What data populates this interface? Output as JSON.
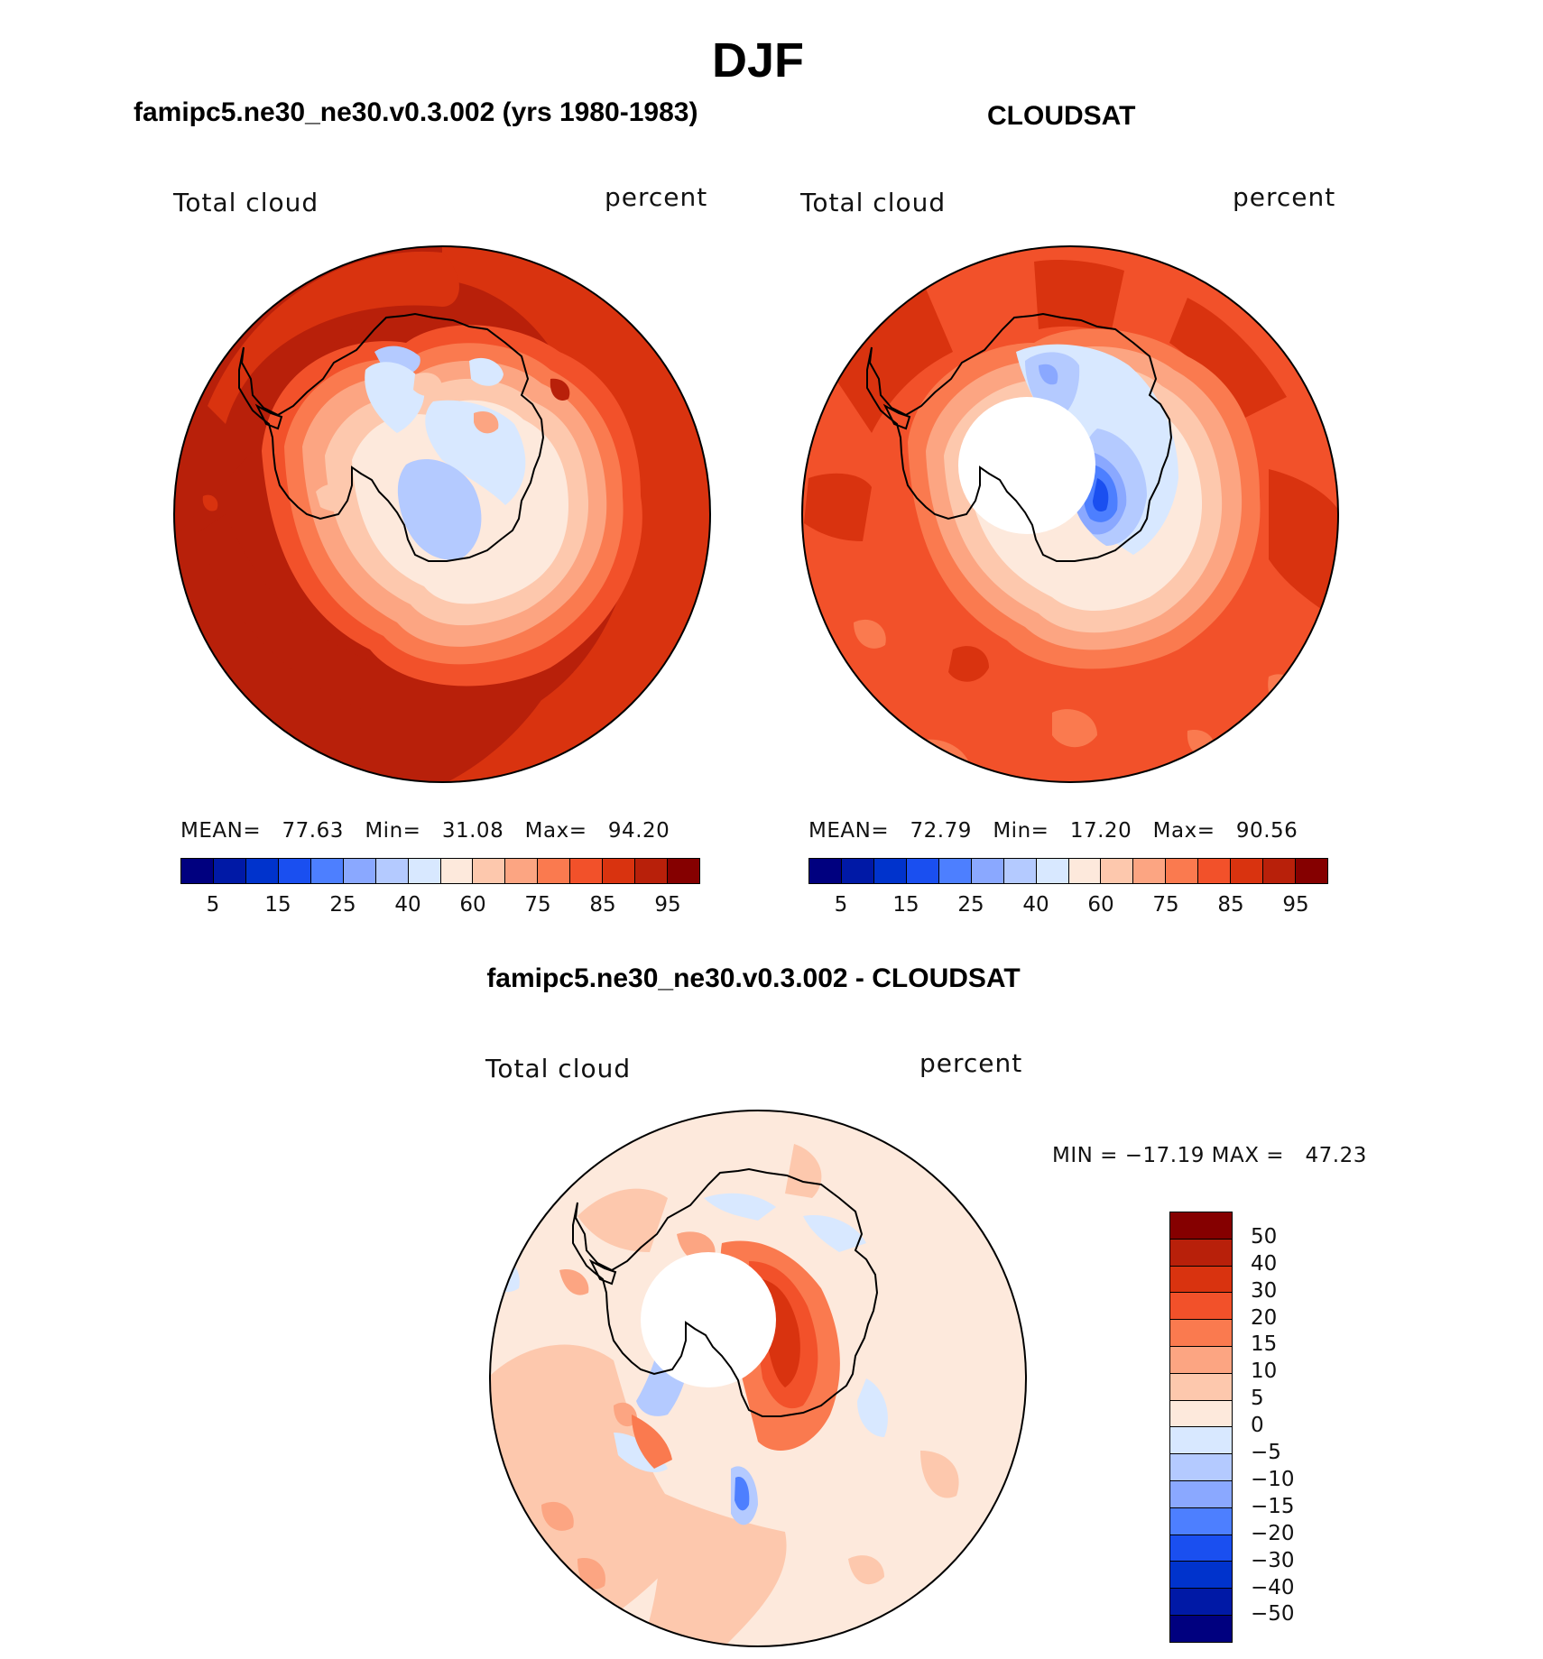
{
  "title": "DJF",
  "panels": {
    "model": {
      "title": "famipc5.ne30_ne30.v0.3.002 (yrs 1980-1983)",
      "variable": "Total cloud",
      "units": "percent",
      "stats": {
        "mean_label": "MEAN=",
        "mean": "77.63",
        "min_label": "Min=",
        "min": "31.08",
        "max_label": "Max=",
        "max": "94.20"
      }
    },
    "obs": {
      "title": "CLOUDSAT",
      "variable": "Total cloud",
      "units": "percent",
      "stats": {
        "mean_label": "MEAN=",
        "mean": "72.79",
        "min_label": "Min=",
        "min": "17.20",
        "max_label": "Max=",
        "max": "90.56"
      }
    },
    "diff": {
      "title": "famipc5.ne30_ne30.v0.3.002 - CLOUDSAT",
      "variable": "Total cloud",
      "units": "percent",
      "minmax": "MIN = −17.19 MAX =   47.23"
    }
  },
  "colorbars": {
    "abs": {
      "colors": [
        "#00007f",
        "#0019a6",
        "#0033cc",
        "#1a4ff0",
        "#4d7fff",
        "#8aa8ff",
        "#b4caff",
        "#d8e8ff",
        "#fde9dc",
        "#fdc8ad",
        "#fca582",
        "#fa7a4f",
        "#f2512a",
        "#d9330f",
        "#b8200a",
        "#850000"
      ],
      "labels": [
        "5",
        "15",
        "25",
        "40",
        "60",
        "75",
        "85",
        "95"
      ]
    },
    "diff": {
      "colors": [
        "#850000",
        "#b8200a",
        "#d9330f",
        "#f2512a",
        "#fa7a4f",
        "#fca582",
        "#fdc8ad",
        "#fde9dc",
        "#d8e8ff",
        "#b4caff",
        "#8aa8ff",
        "#4d7fff",
        "#1a4ff0",
        "#0033cc",
        "#0019a6",
        "#00007f"
      ],
      "labels": [
        "50",
        "40",
        "30",
        "20",
        "15",
        "10",
        "5",
        "0",
        "−5",
        "−10",
        "−15",
        "−20",
        "−30",
        "−40",
        "−50"
      ]
    }
  },
  "chart_data": [
    {
      "type": "heatmap",
      "title": "famipc5.ne30_ne30.v0.3.002 (yrs 1980-1983)",
      "projection": "south-polar stereographic",
      "variable": "Total cloud",
      "units": "percent",
      "mean": 77.63,
      "min": 31.08,
      "max": 94.2,
      "levels": [
        5,
        10,
        15,
        20,
        25,
        30,
        40,
        50,
        60,
        70,
        75,
        80,
        85,
        90,
        95
      ]
    },
    {
      "type": "heatmap",
      "title": "CLOUDSAT",
      "projection": "south-polar stereographic",
      "variable": "Total cloud",
      "units": "percent",
      "mean": 72.79,
      "min": 17.2,
      "max": 90.56,
      "levels": [
        5,
        10,
        15,
        20,
        25,
        30,
        40,
        50,
        60,
        70,
        75,
        80,
        85,
        90,
        95
      ]
    },
    {
      "type": "heatmap",
      "title": "famipc5.ne30_ne30.v0.3.002 - CLOUDSAT",
      "projection": "south-polar stereographic",
      "variable": "Total cloud",
      "units": "percent",
      "min": -17.19,
      "max": 47.23,
      "levels": [
        -50,
        -40,
        -30,
        -20,
        -15,
        -10,
        -5,
        0,
        5,
        10,
        15,
        20,
        30,
        40,
        50
      ]
    }
  ]
}
